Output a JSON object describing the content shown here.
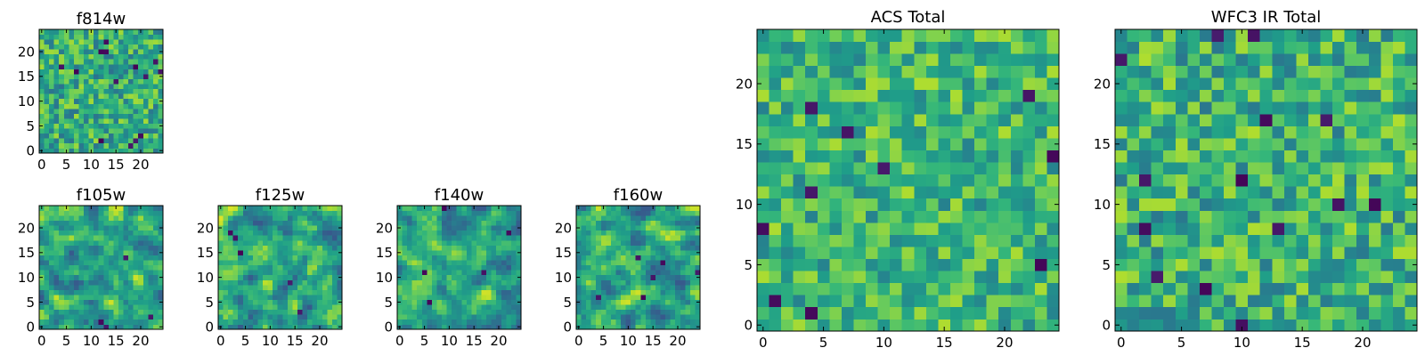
{
  "chart_data": [
    {
      "type": "heatmap",
      "title": "f814w",
      "colormap": "viridis",
      "grid_size": [
        25,
        25
      ],
      "xlim": [
        -0.5,
        24.5
      ],
      "ylim": [
        -0.5,
        24.5
      ],
      "x_ticks": [
        0,
        5,
        10,
        15,
        20
      ],
      "y_ticks": [
        0,
        5,
        10,
        15,
        20
      ],
      "xlabel": "",
      "ylabel": "",
      "pattern_seed": 11,
      "pattern_smoothing": 0,
      "pattern_mean": 0.62,
      "pattern_spread": 0.22,
      "dark_pixels": 14
    },
    {
      "type": "heatmap",
      "title": "f105w",
      "colormap": "viridis",
      "grid_size": [
        25,
        25
      ],
      "xlim": [
        -0.5,
        24.5
      ],
      "ylim": [
        -0.5,
        24.5
      ],
      "x_ticks": [
        0,
        5,
        10,
        15,
        20
      ],
      "y_ticks": [
        0,
        5,
        10,
        15,
        20
      ],
      "xlabel": "",
      "ylabel": "",
      "pattern_seed": 23,
      "pattern_smoothing": 1,
      "pattern_mean": 0.6,
      "pattern_spread": 0.3,
      "dark_pixels": 4
    },
    {
      "type": "heatmap",
      "title": "f125w",
      "colormap": "viridis",
      "grid_size": [
        25,
        25
      ],
      "xlim": [
        -0.5,
        24.5
      ],
      "ylim": [
        -0.5,
        24.5
      ],
      "x_ticks": [
        0,
        5,
        10,
        15,
        20
      ],
      "y_ticks": [
        0,
        5,
        10,
        15,
        20
      ],
      "xlabel": "",
      "ylabel": "",
      "pattern_seed": 37,
      "pattern_smoothing": 1,
      "pattern_mean": 0.6,
      "pattern_spread": 0.32,
      "dark_pixels": 5
    },
    {
      "type": "heatmap",
      "title": "f140w",
      "colormap": "viridis",
      "grid_size": [
        25,
        25
      ],
      "xlim": [
        -0.5,
        24.5
      ],
      "ylim": [
        -0.5,
        24.5
      ],
      "x_ticks": [
        0,
        5,
        10,
        15,
        20
      ],
      "y_ticks": [
        0,
        5,
        10,
        15,
        20
      ],
      "xlabel": "",
      "ylabel": "",
      "pattern_seed": 53,
      "pattern_smoothing": 1,
      "pattern_mean": 0.58,
      "pattern_spread": 0.32,
      "dark_pixels": 5
    },
    {
      "type": "heatmap",
      "title": "f160w",
      "colormap": "viridis",
      "grid_size": [
        25,
        25
      ],
      "xlim": [
        -0.5,
        24.5
      ],
      "ylim": [
        -0.5,
        24.5
      ],
      "x_ticks": [
        0,
        5,
        10,
        15,
        20
      ],
      "y_ticks": [
        0,
        5,
        10,
        15,
        20
      ],
      "xlabel": "",
      "ylabel": "",
      "pattern_seed": 71,
      "pattern_smoothing": 1,
      "pattern_mean": 0.58,
      "pattern_spread": 0.32,
      "dark_pixels": 6
    },
    {
      "type": "heatmap",
      "title": "ACS Total",
      "colormap": "viridis",
      "grid_size": [
        25,
        25
      ],
      "xlim": [
        -0.5,
        24.5
      ],
      "ylim": [
        -0.5,
        24.5
      ],
      "x_ticks": [
        0,
        5,
        10,
        15,
        20
      ],
      "y_ticks": [
        0,
        5,
        10,
        15,
        20
      ],
      "xlabel": "",
      "ylabel": "",
      "pattern_seed": 89,
      "pattern_smoothing": 0,
      "pattern_mean": 0.66,
      "pattern_spread": 0.2,
      "dark_pixels": 10
    },
    {
      "type": "heatmap",
      "title": "WFC3 IR Total",
      "colormap": "viridis",
      "grid_size": [
        25,
        25
      ],
      "xlim": [
        -0.5,
        24.5
      ],
      "ylim": [
        -0.5,
        24.5
      ],
      "x_ticks": [
        0,
        5,
        10,
        15,
        20
      ],
      "y_ticks": [
        0,
        5,
        10,
        15,
        20
      ],
      "xlabel": "",
      "ylabel": "",
      "pattern_seed": 97,
      "pattern_smoothing": 0,
      "pattern_mean": 0.64,
      "pattern_spread": 0.22,
      "dark_pixels": 14
    }
  ]
}
